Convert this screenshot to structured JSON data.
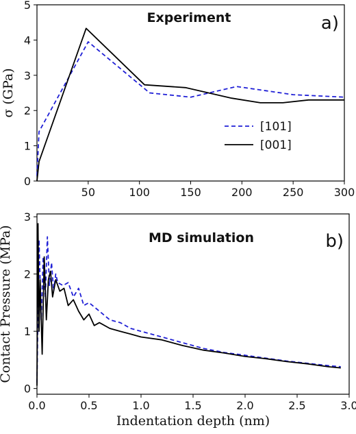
{
  "chart_data": [
    {
      "type": "line",
      "panel_label": "a)",
      "title": "Experiment",
      "xlabel": "",
      "ylabel": "σ (GPa)",
      "xlim": [
        0,
        300
      ],
      "ylim": [
        0,
        5
      ],
      "xticks": [
        50,
        100,
        150,
        200,
        250,
        300
      ],
      "yticks": [
        0,
        1,
        2,
        3,
        4,
        5
      ],
      "grid": false,
      "legend": "center-right",
      "series": [
        {
          "name": "[101]",
          "color": "#1f1fd6",
          "style": "dashed",
          "x": [
            0,
            2,
            50,
            110,
            150,
            195,
            250,
            300
          ],
          "y": [
            0.15,
            1.4,
            3.95,
            2.5,
            2.38,
            2.68,
            2.45,
            2.38
          ]
        },
        {
          "name": "[001]",
          "color": "#000000",
          "style": "solid",
          "x": [
            0,
            2,
            48,
            105,
            145,
            190,
            218,
            240,
            265,
            300
          ],
          "y": [
            0.0,
            0.55,
            4.33,
            2.73,
            2.65,
            2.35,
            2.22,
            2.22,
            2.3,
            2.3
          ]
        }
      ]
    },
    {
      "type": "line",
      "panel_label": "b)",
      "title": "MD simulation",
      "xlabel": "Indentation depth (nm)",
      "ylabel": "Contact Pressure (MPa)",
      "xlim": [
        0,
        3.0
      ],
      "ylim": [
        -0.1,
        3.05
      ],
      "xticks": [
        0.0,
        0.5,
        1.0,
        1.5,
        2.0,
        2.5,
        3.0
      ],
      "yticks": [
        0,
        1,
        2,
        3
      ],
      "grid": false,
      "series": [
        {
          "color": "#1f1fd6",
          "style": "dashed",
          "x": [
            0.0,
            0.02,
            0.04,
            0.06,
            0.08,
            0.1,
            0.12,
            0.14,
            0.16,
            0.18,
            0.2,
            0.25,
            0.3,
            0.35,
            0.4,
            0.45,
            0.5,
            0.6,
            0.7,
            0.8,
            0.9,
            1.0,
            1.2,
            1.4,
            1.6,
            1.8,
            2.0,
            2.2,
            2.4,
            2.6,
            2.8,
            2.92
          ],
          "y": [
            0.1,
            2.6,
            1.2,
            2.3,
            1.6,
            2.65,
            1.8,
            2.2,
            1.7,
            2.0,
            1.85,
            1.8,
            1.85,
            1.6,
            1.75,
            1.45,
            1.5,
            1.35,
            1.2,
            1.15,
            1.05,
            1.0,
            0.9,
            0.8,
            0.7,
            0.63,
            0.58,
            0.53,
            0.48,
            0.44,
            0.4,
            0.38
          ]
        },
        {
          "color": "#000000",
          "style": "solid",
          "x": [
            0.0,
            0.01,
            0.02,
            0.03,
            0.05,
            0.07,
            0.09,
            0.11,
            0.13,
            0.15,
            0.18,
            0.22,
            0.26,
            0.3,
            0.35,
            0.4,
            0.45,
            0.5,
            0.55,
            0.6,
            0.7,
            0.8,
            0.9,
            1.0,
            1.2,
            1.4,
            1.6,
            1.8,
            2.0,
            2.2,
            2.4,
            2.6,
            2.8,
            2.92
          ],
          "y": [
            0.05,
            2.88,
            1.0,
            1.9,
            0.6,
            2.3,
            1.2,
            1.9,
            2.05,
            1.6,
            1.9,
            1.7,
            1.75,
            1.45,
            1.55,
            1.35,
            1.2,
            1.3,
            1.1,
            1.15,
            1.05,
            1.0,
            0.95,
            0.9,
            0.85,
            0.75,
            0.67,
            0.62,
            0.56,
            0.52,
            0.47,
            0.43,
            0.38,
            0.36
          ]
        }
      ]
    }
  ]
}
